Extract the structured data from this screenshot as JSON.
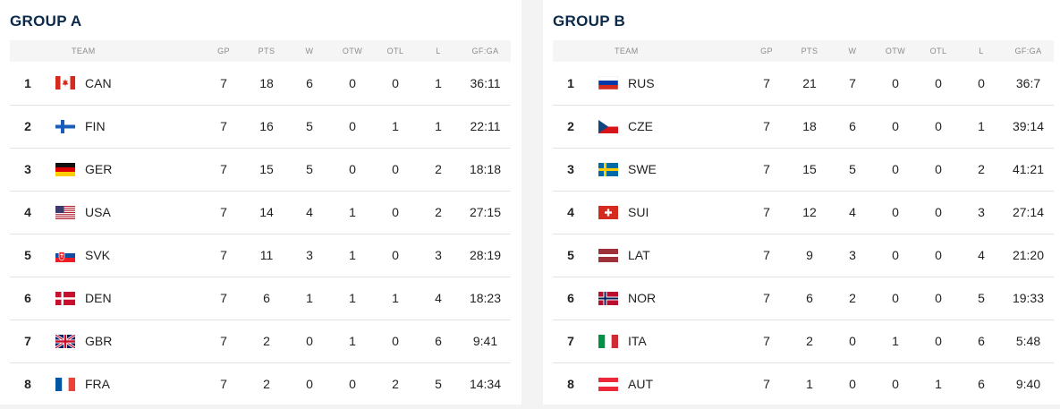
{
  "headers": {
    "team": "TEAM",
    "gp": "GP",
    "pts": "PTS",
    "w": "W",
    "otw": "OTW",
    "otl": "OTL",
    "l": "L",
    "gfga": "GF:GA"
  },
  "groups": [
    {
      "title": "GROUP A",
      "rows": [
        {
          "rank": "1",
          "team": "CAN",
          "flag": "canada-flag-icon",
          "gp": "7",
          "pts": "18",
          "w": "6",
          "otw": "0",
          "otl": "0",
          "l": "1",
          "gfga": "36:11"
        },
        {
          "rank": "2",
          "team": "FIN",
          "flag": "finland-flag-icon",
          "gp": "7",
          "pts": "16",
          "w": "5",
          "otw": "0",
          "otl": "1",
          "l": "1",
          "gfga": "22:11"
        },
        {
          "rank": "3",
          "team": "GER",
          "flag": "germany-flag-icon",
          "gp": "7",
          "pts": "15",
          "w": "5",
          "otw": "0",
          "otl": "0",
          "l": "2",
          "gfga": "18:18"
        },
        {
          "rank": "4",
          "team": "USA",
          "flag": "usa-flag-icon",
          "gp": "7",
          "pts": "14",
          "w": "4",
          "otw": "1",
          "otl": "0",
          "l": "2",
          "gfga": "27:15"
        },
        {
          "rank": "5",
          "team": "SVK",
          "flag": "slovakia-flag-icon",
          "gp": "7",
          "pts": "11",
          "w": "3",
          "otw": "1",
          "otl": "0",
          "l": "3",
          "gfga": "28:19"
        },
        {
          "rank": "6",
          "team": "DEN",
          "flag": "denmark-flag-icon",
          "gp": "7",
          "pts": "6",
          "w": "1",
          "otw": "1",
          "otl": "1",
          "l": "4",
          "gfga": "18:23"
        },
        {
          "rank": "7",
          "team": "GBR",
          "flag": "great-britain-flag-icon",
          "gp": "7",
          "pts": "2",
          "w": "0",
          "otw": "1",
          "otl": "0",
          "l": "6",
          "gfga": "9:41"
        },
        {
          "rank": "8",
          "team": "FRA",
          "flag": "france-flag-icon",
          "gp": "7",
          "pts": "2",
          "w": "0",
          "otw": "0",
          "otl": "2",
          "l": "5",
          "gfga": "14:34"
        }
      ]
    },
    {
      "title": "GROUP B",
      "rows": [
        {
          "rank": "1",
          "team": "RUS",
          "flag": "russia-flag-icon",
          "gp": "7",
          "pts": "21",
          "w": "7",
          "otw": "0",
          "otl": "0",
          "l": "0",
          "gfga": "36:7"
        },
        {
          "rank": "2",
          "team": "CZE",
          "flag": "czechia-flag-icon",
          "gp": "7",
          "pts": "18",
          "w": "6",
          "otw": "0",
          "otl": "0",
          "l": "1",
          "gfga": "39:14"
        },
        {
          "rank": "3",
          "team": "SWE",
          "flag": "sweden-flag-icon",
          "gp": "7",
          "pts": "15",
          "w": "5",
          "otw": "0",
          "otl": "0",
          "l": "2",
          "gfga": "41:21"
        },
        {
          "rank": "4",
          "team": "SUI",
          "flag": "switzerland-flag-icon",
          "gp": "7",
          "pts": "12",
          "w": "4",
          "otw": "0",
          "otl": "0",
          "l": "3",
          "gfga": "27:14"
        },
        {
          "rank": "5",
          "team": "LAT",
          "flag": "latvia-flag-icon",
          "gp": "7",
          "pts": "9",
          "w": "3",
          "otw": "0",
          "otl": "0",
          "l": "4",
          "gfga": "21:20"
        },
        {
          "rank": "6",
          "team": "NOR",
          "flag": "norway-flag-icon",
          "gp": "7",
          "pts": "6",
          "w": "2",
          "otw": "0",
          "otl": "0",
          "l": "5",
          "gfga": "19:33"
        },
        {
          "rank": "7",
          "team": "ITA",
          "flag": "italy-flag-icon",
          "gp": "7",
          "pts": "2",
          "w": "0",
          "otw": "1",
          "otl": "0",
          "l": "6",
          "gfga": "5:48"
        },
        {
          "rank": "8",
          "team": "AUT",
          "flag": "austria-flag-icon",
          "gp": "7",
          "pts": "1",
          "w": "0",
          "otw": "0",
          "otl": "1",
          "l": "6",
          "gfga": "9:40"
        }
      ]
    }
  ]
}
